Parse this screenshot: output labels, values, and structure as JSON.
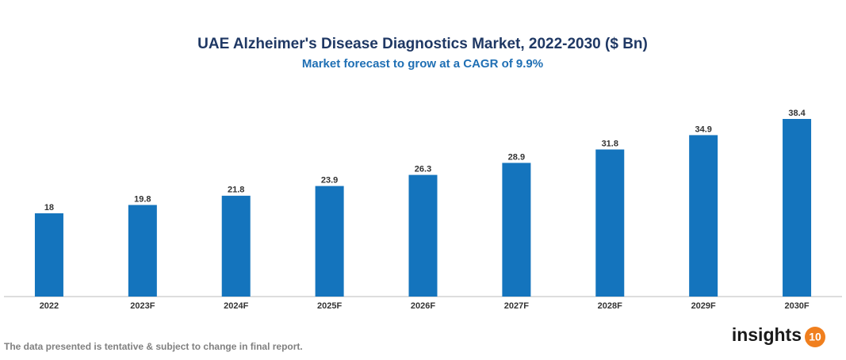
{
  "chart_data": {
    "type": "bar",
    "title": "UAE Alzheimer's Disease Diagnostics Market, 2022-2030 ($ Bn)",
    "subtitle": "Market forecast to grow at a CAGR of 9.9%",
    "categories": [
      "2022",
      "2023F",
      "2024F",
      "2025F",
      "2026F",
      "2027F",
      "2028F",
      "2029F",
      "2030F"
    ],
    "values": [
      18,
      19.8,
      21.8,
      23.9,
      26.3,
      28.9,
      31.8,
      34.9,
      38.4
    ],
    "color": "#1474bd"
  },
  "footnote": "The data presented is tentative & subject to change in final report.",
  "logo": {
    "text": "insights",
    "badge": "10"
  }
}
